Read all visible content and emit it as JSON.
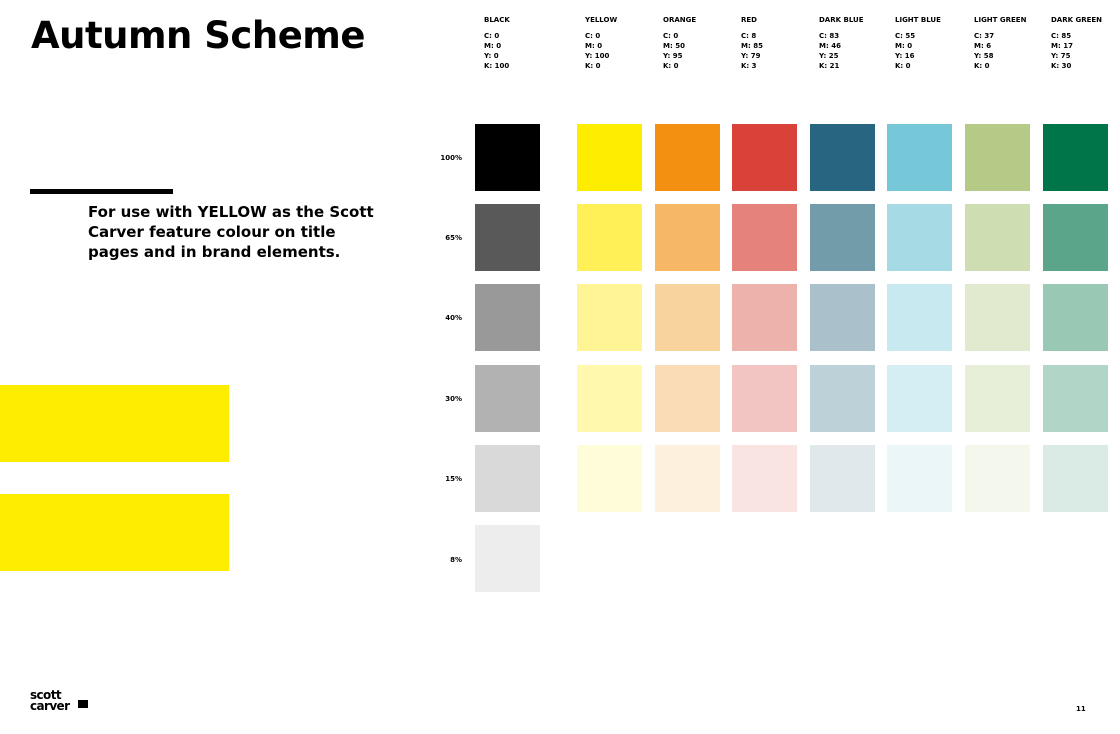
{
  "page": {
    "title": "Autumn Scheme",
    "intro": "For use with YELLOW as the Scott Carver feature colour on title pages and in brand elements.",
    "page_number": "11"
  },
  "brand": {
    "logo_line1": "scott",
    "logo_line2": "carver",
    "feature_color": "#FFED00"
  },
  "swatch_table": {
    "rows": [
      "100%",
      "65%",
      "40%",
      "30%",
      "15%",
      "8%"
    ],
    "columns": [
      {
        "name": "BLACK",
        "cmyk": [
          "C: 0",
          "M: 0",
          "Y: 0",
          "K: 100"
        ],
        "swatches": [
          "#000000",
          "#595959",
          "#999999",
          "#B2B2B2",
          "#D9D9D9",
          "#EDEDED"
        ]
      },
      {
        "name": "YELLOW",
        "cmyk": [
          "C: 0",
          "M: 0",
          "Y: 100",
          "K: 0"
        ],
        "swatches": [
          "#FFED00",
          "#FFF057",
          "#FFF594",
          "#FFF8AD",
          "#FFFCDA"
        ]
      },
      {
        "name": "ORANGE",
        "cmyk": [
          "C: 0",
          "M: 50",
          "Y: 95",
          "K: 0"
        ],
        "swatches": [
          "#F39012",
          "#F6B866",
          "#F9D39E",
          "#FADDB6",
          "#FDF0DD"
        ]
      },
      {
        "name": "RED",
        "cmyk": [
          "C: 8",
          "M: 85",
          "Y: 79",
          "K: 3"
        ],
        "swatches": [
          "#D94238",
          "#E5827B",
          "#EEB2AD",
          "#F2C5C2",
          "#F9E4E2"
        ]
      },
      {
        "name": "DARK BLUE",
        "cmyk": [
          "C: 83",
          "M: 46",
          "Y: 25",
          "K: 21"
        ],
        "swatches": [
          "#286580",
          "#739CAB",
          "#AAC1CC",
          "#BDD1D9",
          "#E0E8EC"
        ]
      },
      {
        "name": "LIGHT BLUE",
        "cmyk": [
          "C: 55",
          "M: 0",
          "Y: 16",
          "K: 0"
        ],
        "swatches": [
          "#76C8D9",
          "#A6DBE6",
          "#C8E9F0",
          "#D5EEF3",
          "#EBF6F9"
        ]
      },
      {
        "name": "LIGHT GREEN",
        "cmyk": [
          "C: 37",
          "M: 6",
          "Y: 58",
          "K: 0"
        ],
        "swatches": [
          "#B4CA86",
          "#CFDDB2",
          "#E1EACE",
          "#E8EFD8",
          "#F3F7EC"
        ]
      },
      {
        "name": "DARK GREEN",
        "cmyk": [
          "C: 85",
          "M: 17",
          "Y: 75",
          "K: 30"
        ],
        "swatches": [
          "#007549",
          "#5BA68A",
          "#99C8B5",
          "#B1D6C7",
          "#D9EBE4"
        ]
      }
    ]
  }
}
